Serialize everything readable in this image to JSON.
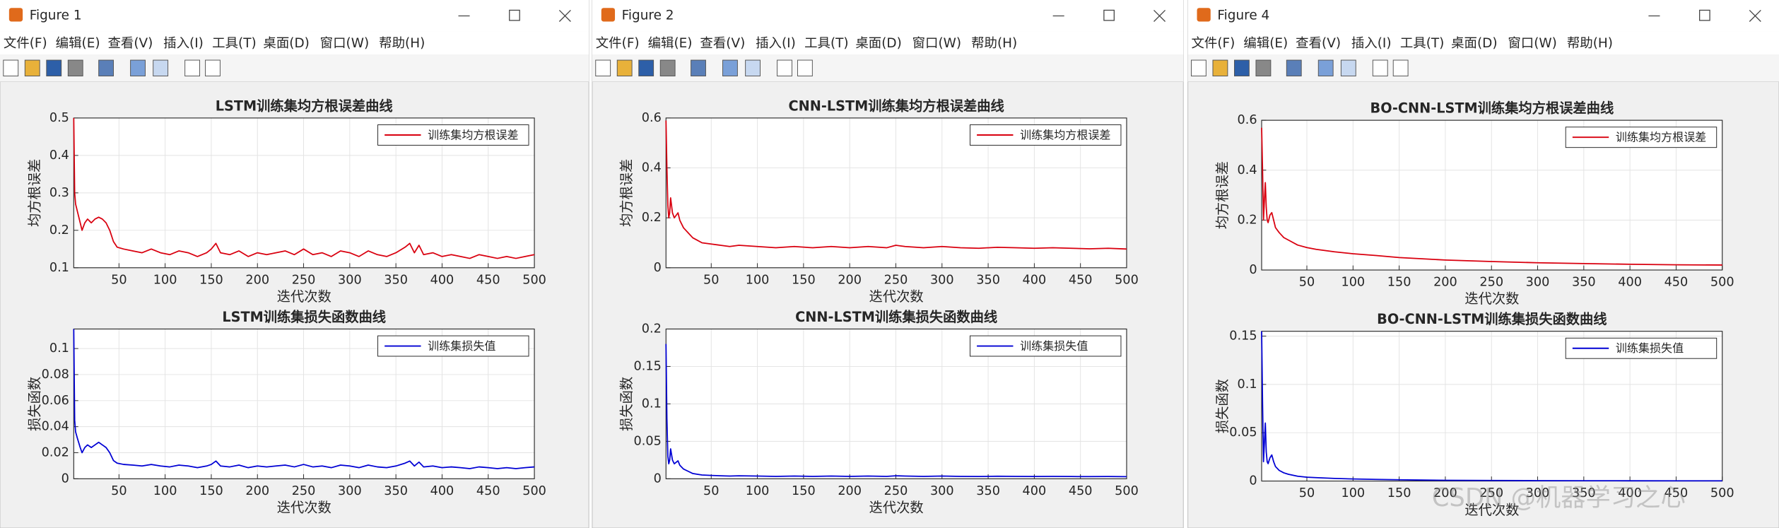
{
  "windows": [
    {
      "title": "Figure 1"
    },
    {
      "title": "Figure 2"
    },
    {
      "title": "Figure 4"
    }
  ],
  "menu": [
    "文件(F)",
    "编辑(E)",
    "查看(V)",
    "插入(I)",
    "工具(T)",
    "桌面(D)",
    "窗口(W)",
    "帮助(H)"
  ],
  "watermark": "CSDN @机器学习之心",
  "chart_data": [
    {
      "type": "line",
      "title": "LSTM训练集均方根误差曲线",
      "xlabel": "迭代次数",
      "ylabel": "均方根误差",
      "xlim": [
        1,
        500
      ],
      "xticks": [
        50,
        100,
        150,
        200,
        250,
        300,
        350,
        400,
        450,
        500
      ],
      "ylim": [
        0.1,
        0.5
      ],
      "yticks": [
        0.1,
        0.2,
        0.3,
        0.4,
        0.5
      ],
      "grid": true,
      "legend": "northeast",
      "x": [
        1,
        2,
        3,
        5,
        8,
        10,
        13,
        16,
        20,
        24,
        28,
        32,
        36,
        40,
        44,
        48,
        55,
        65,
        75,
        85,
        95,
        105,
        115,
        125,
        135,
        145,
        150,
        155,
        160,
        170,
        180,
        190,
        200,
        210,
        220,
        230,
        240,
        250,
        260,
        270,
        280,
        290,
        300,
        310,
        320,
        330,
        340,
        350,
        360,
        365,
        370,
        375,
        380,
        390,
        400,
        410,
        420,
        430,
        440,
        450,
        460,
        470,
        480,
        490,
        500
      ],
      "series": [
        {
          "name": "训练集均方根误差",
          "color": "#d9000f",
          "values": [
            0.5,
            0.3,
            0.27,
            0.25,
            0.22,
            0.2,
            0.22,
            0.23,
            0.22,
            0.23,
            0.235,
            0.23,
            0.22,
            0.2,
            0.17,
            0.155,
            0.15,
            0.145,
            0.14,
            0.15,
            0.14,
            0.135,
            0.145,
            0.14,
            0.13,
            0.14,
            0.15,
            0.165,
            0.14,
            0.135,
            0.145,
            0.13,
            0.14,
            0.135,
            0.14,
            0.145,
            0.135,
            0.15,
            0.135,
            0.14,
            0.13,
            0.145,
            0.14,
            0.13,
            0.145,
            0.135,
            0.13,
            0.14,
            0.155,
            0.165,
            0.14,
            0.16,
            0.135,
            0.14,
            0.13,
            0.135,
            0.13,
            0.125,
            0.135,
            0.13,
            0.125,
            0.13,
            0.125,
            0.13,
            0.135
          ]
        }
      ]
    },
    {
      "type": "line",
      "title": "LSTM训练集损失函数曲线",
      "xlabel": "迭代次数",
      "ylabel": "损失函数",
      "xlim": [
        1,
        500
      ],
      "xticks": [
        50,
        100,
        150,
        200,
        250,
        300,
        350,
        400,
        450,
        500
      ],
      "ylim": [
        0,
        0.115
      ],
      "yticks": [
        0,
        0.02,
        0.04,
        0.06,
        0.08,
        0.1
      ],
      "grid": true,
      "legend": "northeast",
      "x": [
        1,
        2,
        3,
        5,
        8,
        10,
        13,
        16,
        20,
        24,
        28,
        32,
        36,
        40,
        44,
        48,
        55,
        65,
        75,
        85,
        95,
        105,
        115,
        125,
        135,
        145,
        150,
        155,
        160,
        170,
        180,
        190,
        200,
        210,
        220,
        230,
        240,
        250,
        260,
        270,
        280,
        290,
        300,
        310,
        320,
        330,
        340,
        350,
        360,
        365,
        370,
        375,
        380,
        390,
        400,
        410,
        420,
        430,
        440,
        450,
        460,
        470,
        480,
        490,
        500
      ],
      "series": [
        {
          "name": "训练集损失值",
          "color": "#0000d4",
          "values": [
            0.115,
            0.045,
            0.036,
            0.031,
            0.024,
            0.02,
            0.024,
            0.026,
            0.024,
            0.026,
            0.028,
            0.026,
            0.024,
            0.02,
            0.014,
            0.012,
            0.011,
            0.0105,
            0.0098,
            0.011,
            0.0098,
            0.0091,
            0.0105,
            0.0098,
            0.0085,
            0.0098,
            0.011,
            0.0136,
            0.0098,
            0.0091,
            0.0105,
            0.0085,
            0.0098,
            0.0091,
            0.0098,
            0.0105,
            0.0091,
            0.011,
            0.0091,
            0.0098,
            0.0085,
            0.0105,
            0.0098,
            0.0085,
            0.0105,
            0.0091,
            0.0085,
            0.0098,
            0.012,
            0.0136,
            0.0098,
            0.0128,
            0.0091,
            0.0098,
            0.0085,
            0.0091,
            0.0085,
            0.0078,
            0.0091,
            0.0085,
            0.0078,
            0.0085,
            0.0078,
            0.0085,
            0.0091
          ]
        }
      ]
    },
    {
      "type": "line",
      "title": "CNN-LSTM训练集均方根误差曲线",
      "xlabel": "迭代次数",
      "ylabel": "均方根误差",
      "xlim": [
        1,
        500
      ],
      "xticks": [
        50,
        100,
        150,
        200,
        250,
        300,
        350,
        400,
        450,
        500
      ],
      "ylim": [
        0,
        0.6
      ],
      "yticks": [
        0,
        0.2,
        0.4,
        0.6
      ],
      "grid": true,
      "legend": "northeast",
      "x": [
        1,
        2,
        3,
        4,
        5,
        6,
        8,
        10,
        12,
        14,
        16,
        20,
        25,
        30,
        35,
        40,
        50,
        60,
        70,
        80,
        100,
        120,
        140,
        160,
        180,
        200,
        220,
        240,
        250,
        260,
        280,
        300,
        320,
        340,
        360,
        380,
        400,
        420,
        440,
        460,
        480,
        500
      ],
      "series": [
        {
          "name": "训练集均方根误差",
          "color": "#d9000f",
          "values": [
            0.59,
            0.4,
            0.25,
            0.2,
            0.22,
            0.28,
            0.22,
            0.2,
            0.21,
            0.22,
            0.19,
            0.16,
            0.14,
            0.12,
            0.11,
            0.1,
            0.095,
            0.09,
            0.085,
            0.09,
            0.085,
            0.08,
            0.085,
            0.08,
            0.085,
            0.08,
            0.085,
            0.08,
            0.09,
            0.085,
            0.08,
            0.085,
            0.08,
            0.078,
            0.082,
            0.08,
            0.078,
            0.08,
            0.078,
            0.076,
            0.078,
            0.075
          ]
        }
      ]
    },
    {
      "type": "line",
      "title": "CNN-LSTM训练集损失函数曲线",
      "xlabel": "迭代次数",
      "ylabel": "损失函数",
      "xlim": [
        1,
        500
      ],
      "xticks": [
        50,
        100,
        150,
        200,
        250,
        300,
        350,
        400,
        450,
        500
      ],
      "ylim": [
        0,
        0.2
      ],
      "yticks": [
        0,
        0.05,
        0.1,
        0.15,
        0.2
      ],
      "grid": true,
      "legend": "northeast",
      "x": [
        1,
        2,
        3,
        4,
        5,
        6,
        8,
        10,
        12,
        14,
        16,
        20,
        25,
        30,
        35,
        40,
        50,
        60,
        70,
        80,
        100,
        120,
        140,
        160,
        180,
        200,
        220,
        240,
        250,
        260,
        280,
        300,
        320,
        340,
        360,
        380,
        400,
        420,
        440,
        460,
        480,
        500
      ],
      "series": [
        {
          "name": "训练集损失值",
          "color": "#0000d4",
          "values": [
            0.18,
            0.08,
            0.03,
            0.02,
            0.025,
            0.04,
            0.025,
            0.02,
            0.022,
            0.024,
            0.018,
            0.013,
            0.01,
            0.007,
            0.006,
            0.005,
            0.0045,
            0.004,
            0.0036,
            0.004,
            0.0036,
            0.0032,
            0.0036,
            0.0032,
            0.0036,
            0.0032,
            0.0036,
            0.0032,
            0.004,
            0.0036,
            0.0032,
            0.0036,
            0.0032,
            0.003,
            0.0034,
            0.0032,
            0.003,
            0.0032,
            0.003,
            0.0029,
            0.003,
            0.0028
          ]
        }
      ]
    },
    {
      "type": "line",
      "title": "BO-CNN-LSTM训练集均方根误差曲线",
      "xlabel": "迭代次数",
      "ylabel": "均方根误差",
      "xlim": [
        1,
        500
      ],
      "xticks": [
        50,
        100,
        150,
        200,
        250,
        300,
        350,
        400,
        450,
        500
      ],
      "ylim": [
        0,
        0.6
      ],
      "yticks": [
        0,
        0.2,
        0.4,
        0.6
      ],
      "grid": true,
      "legend": "northeast",
      "x": [
        1,
        2,
        3,
        4,
        5,
        6,
        7,
        8,
        10,
        12,
        14,
        16,
        20,
        25,
        30,
        40,
        50,
        60,
        80,
        100,
        125,
        150,
        175,
        200,
        250,
        300,
        350,
        400,
        450,
        500
      ],
      "series": [
        {
          "name": "训练集均方根误差",
          "color": "#d9000f",
          "values": [
            0.57,
            0.4,
            0.2,
            0.28,
            0.35,
            0.25,
            0.2,
            0.19,
            0.22,
            0.23,
            0.2,
            0.17,
            0.15,
            0.13,
            0.12,
            0.1,
            0.09,
            0.083,
            0.073,
            0.065,
            0.058,
            0.05,
            0.045,
            0.04,
            0.034,
            0.029,
            0.026,
            0.023,
            0.021,
            0.02
          ]
        }
      ]
    },
    {
      "type": "line",
      "title": "BO-CNN-LSTM训练集损失函数曲线",
      "xlabel": "迭代次数",
      "ylabel": "损失函数",
      "xlim": [
        1,
        500
      ],
      "xticks": [
        50,
        100,
        150,
        200,
        250,
        300,
        350,
        400,
        450,
        500
      ],
      "ylim": [
        0,
        0.155
      ],
      "yticks": [
        0,
        0.05,
        0.1,
        0.15
      ],
      "grid": true,
      "legend": "northeast",
      "x": [
        1,
        2,
        3,
        4,
        5,
        6,
        7,
        8,
        10,
        12,
        14,
        16,
        20,
        25,
        30,
        40,
        50,
        60,
        80,
        100,
        125,
        150,
        175,
        200,
        250,
        300,
        350,
        400,
        450,
        500
      ],
      "series": [
        {
          "name": "训练集损失值",
          "color": "#0000d4",
          "values": [
            0.155,
            0.08,
            0.02,
            0.04,
            0.06,
            0.03,
            0.02,
            0.018,
            0.024,
            0.027,
            0.02,
            0.015,
            0.011,
            0.0085,
            0.007,
            0.005,
            0.004,
            0.0035,
            0.0027,
            0.0021,
            0.0017,
            0.0013,
            0.001,
            0.0008,
            0.0006,
            0.0004,
            0.00034,
            0.00027,
            0.00022,
            0.0002
          ]
        }
      ]
    }
  ]
}
